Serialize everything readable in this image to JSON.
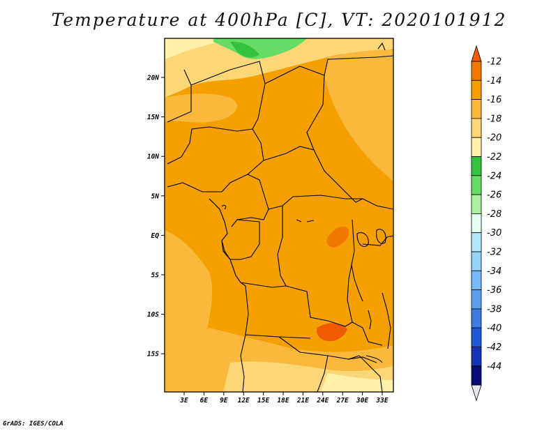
{
  "title": "Temperature at 400hPa [C], VT: 2020101912",
  "footer": "GrADS: IGES/COLA",
  "map": {
    "lon_ticks": [
      "3E",
      "6E",
      "9E",
      "12E",
      "15E",
      "18E",
      "21E",
      "24E",
      "27E",
      "30E",
      "33E"
    ],
    "lat_ticks": [
      "20N",
      "15N",
      "10N",
      "5N",
      "EQ",
      "5S",
      "10S",
      "15S"
    ]
  },
  "colorbar": {
    "labels": [
      "-12",
      "-14",
      "-16",
      "-18",
      "-20",
      "-22",
      "-24",
      "-26",
      "-28",
      "-30",
      "-32",
      "-34",
      "-36",
      "-38",
      "-40",
      "-42",
      "-44"
    ],
    "colors": [
      "#f05a00",
      "#f07800",
      "#f5a000",
      "#f8b93c",
      "#fcd778",
      "#fff0aa",
      "#33c33c",
      "#66dc66",
      "#aaf0a0",
      "#e6fff0",
      "#b4e8f8",
      "#96d2fa",
      "#78b9fa",
      "#5a9ef0",
      "#3c7ce0",
      "#1e5ad2",
      "#1432b4",
      "#0a0a78"
    ],
    "top_arrow_color": "#f05a00",
    "bottom_arrow_color": "#e6e6f0"
  }
}
